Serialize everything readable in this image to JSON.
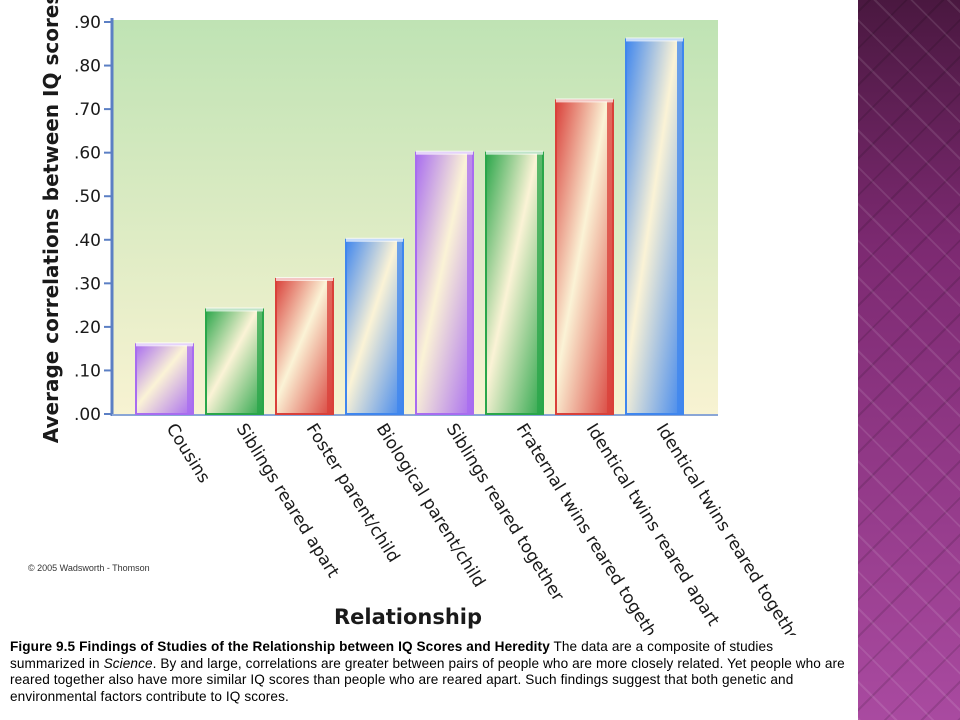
{
  "chart_data": {
    "type": "bar",
    "title": "",
    "xlabel": "Relationship",
    "ylabel": "Average correlations between IQ scores",
    "ylim": [
      0,
      0.9
    ],
    "yticks": [
      ".00",
      ".10",
      ".20",
      ".30",
      ".40",
      ".50",
      ".60",
      ".70",
      ".80",
      ".90"
    ],
    "categories": [
      "Cousins",
      "Siblings reared apart",
      "Foster parent/child",
      "Biological parent/child",
      "Siblings reared together",
      "Fraternal twins reared together",
      "Identical twins reared apart",
      "Identical twins reared together"
    ],
    "values": [
      0.16,
      0.24,
      0.31,
      0.4,
      0.6,
      0.6,
      0.72,
      0.86
    ],
    "bar_colors": [
      "#a86cf0",
      "#2aa64a",
      "#d9403a",
      "#3f86ee",
      "#a86cf0",
      "#2aa64a",
      "#d9403a",
      "#3f86ee"
    ],
    "grid": false
  },
  "credit": "© 2005 Wadsworth - Thomson",
  "caption": {
    "label": "Figure 9.5  Findings  of Studies of the Relationship  between IQ Scores and Heredity",
    "text_before": " The data are a composite of studies summarized in ",
    "journal": "Science",
    "text_after": ". By and large, correlations are greater between  pairs of people  who are more closely related. Yet people  who are reared together also have more similar IQ scores than people  who are reared apart. Such findings suggest that both genetic and environmental  factors contribute to IQ scores."
  },
  "colors": {
    "plot_top": "#bfe3b4",
    "plot_bottom": "#f7f2cf",
    "axis": "#5b7fc4",
    "side_strip": "#8a2f7e"
  }
}
